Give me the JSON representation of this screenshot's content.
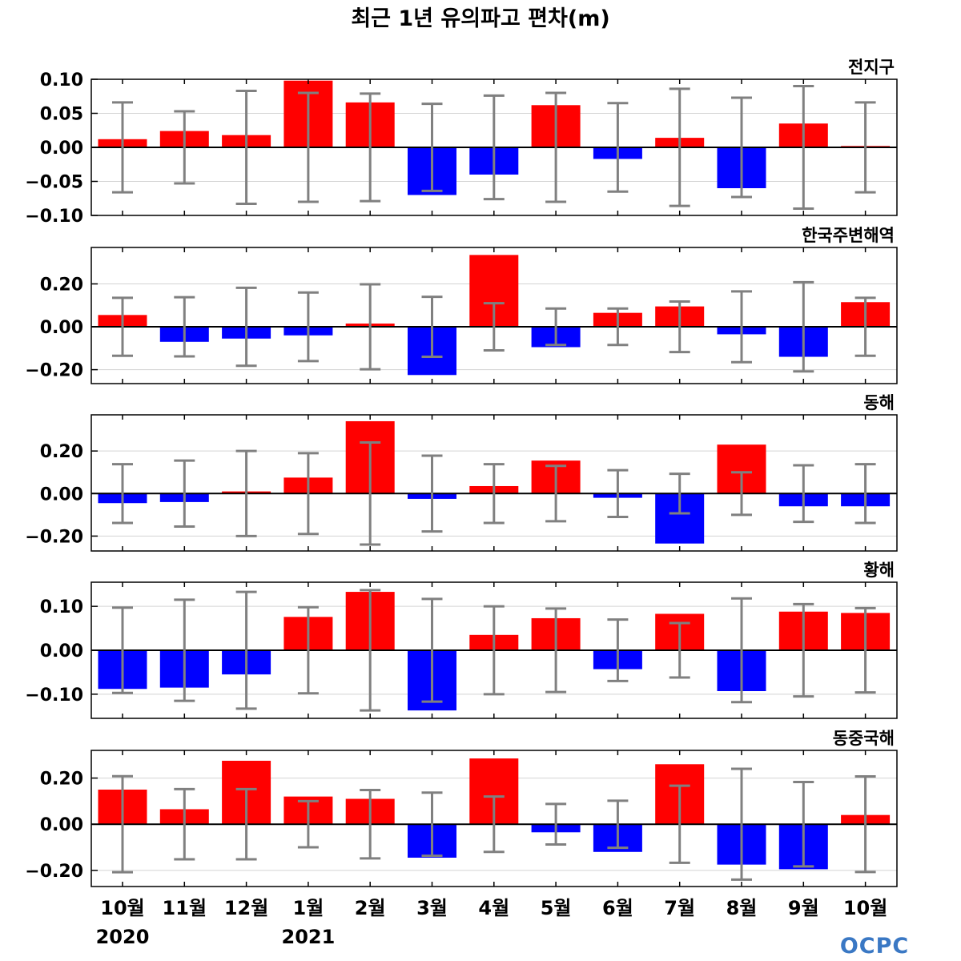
{
  "title": "최근 1년 유의파고 편차(m)",
  "months": [
    "10월",
    "11월",
    "12월",
    "1월",
    "2월",
    "3월",
    "4월",
    "5월",
    "6월",
    "7월",
    "8월",
    "9월",
    "10월"
  ],
  "years": [
    {
      "label": "2020",
      "index": 0
    },
    {
      "label": "2021",
      "index": 3
    }
  ],
  "logo": "OCPC",
  "colors": {
    "positive": "#ff0000",
    "negative": "#0000ff",
    "errorbar": "#808080",
    "zero_line": "#000000",
    "grid": "#d3d3d3"
  },
  "chart_data": [
    {
      "type": "bar",
      "name": "전지구",
      "ylim": [
        -0.1,
        0.1
      ],
      "yticks": [
        -0.1,
        -0.05,
        0.0,
        0.05,
        0.1
      ],
      "ytick_labels": [
        "−0.10",
        "−0.05",
        "0.00",
        "0.05",
        "0.10"
      ],
      "values": [
        0.012,
        0.024,
        0.018,
        0.098,
        0.066,
        -0.07,
        -0.04,
        0.062,
        -0.017,
        0.014,
        -0.06,
        0.035,
        0.002
      ],
      "error": [
        0.066,
        0.053,
        0.083,
        0.08,
        0.079,
        0.064,
        0.076,
        0.08,
        0.065,
        0.086,
        0.073,
        0.09,
        0.066
      ]
    },
    {
      "type": "bar",
      "name": "한국주변해역",
      "ylim": [
        -0.265,
        0.37
      ],
      "yticks": [
        -0.2,
        0.0,
        0.2
      ],
      "ytick_labels": [
        "−0.20",
        "0.00",
        "0.20"
      ],
      "values": [
        0.055,
        -0.07,
        -0.055,
        -0.04,
        0.015,
        -0.225,
        0.335,
        -0.095,
        0.065,
        0.095,
        -0.035,
        -0.14,
        0.115
      ],
      "error": [
        0.135,
        0.138,
        0.182,
        0.16,
        0.198,
        0.14,
        0.11,
        0.085,
        0.085,
        0.118,
        0.165,
        0.208,
        0.135
      ]
    },
    {
      "type": "bar",
      "name": "동해",
      "ylim": [
        -0.27,
        0.37
      ],
      "yticks": [
        -0.2,
        0.0,
        0.2
      ],
      "ytick_labels": [
        "−0.20",
        "0.00",
        "0.20"
      ],
      "values": [
        -0.045,
        -0.04,
        0.01,
        0.075,
        0.34,
        -0.025,
        0.035,
        0.155,
        -0.02,
        -0.235,
        0.23,
        -0.06,
        -0.06
      ],
      "error": [
        0.138,
        0.155,
        0.2,
        0.19,
        0.24,
        0.178,
        0.138,
        0.13,
        0.11,
        0.093,
        0.1,
        0.133,
        0.138
      ]
    },
    {
      "type": "bar",
      "name": "황해",
      "ylim": [
        -0.155,
        0.155
      ],
      "yticks": [
        -0.1,
        0.0,
        0.1
      ],
      "ytick_labels": [
        "−0.10",
        "0.00",
        "0.10"
      ],
      "values": [
        -0.088,
        -0.085,
        -0.055,
        0.076,
        0.133,
        -0.137,
        0.035,
        0.073,
        -0.043,
        0.083,
        -0.093,
        0.088,
        0.085
      ],
      "error": [
        0.097,
        0.115,
        0.133,
        0.098,
        0.137,
        0.117,
        0.1,
        0.095,
        0.07,
        0.062,
        0.118,
        0.105,
        0.096
      ]
    },
    {
      "type": "bar",
      "name": "동중국해",
      "ylim": [
        -0.27,
        0.32
      ],
      "yticks": [
        -0.2,
        0.0,
        0.2
      ],
      "ytick_labels": [
        "−0.20",
        "0.00",
        "0.20"
      ],
      "values": [
        0.15,
        0.065,
        0.275,
        0.12,
        0.11,
        -0.145,
        0.285,
        -0.035,
        -0.12,
        0.26,
        -0.175,
        -0.195,
        0.04
      ],
      "error": [
        0.208,
        0.152,
        0.152,
        0.1,
        0.148,
        0.137,
        0.12,
        0.088,
        0.102,
        0.167,
        0.24,
        0.183,
        0.207
      ]
    }
  ]
}
